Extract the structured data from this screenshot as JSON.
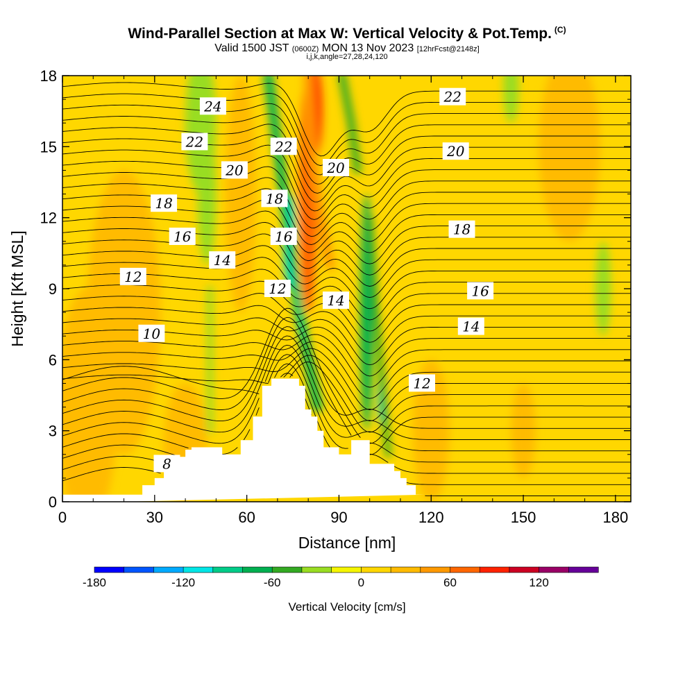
{
  "header": {
    "title_main": "Wind-Parallel Section at Max W: Vertical Velocity & Pot.Temp.",
    "title_tag": "(C)",
    "subtitle_valid": "Valid 1500 JST",
    "subtitle_utc": "(0600Z)",
    "subtitle_date": "MON 13 Nov 2023",
    "subtitle_fcst": "[12hrFcst@2148z]",
    "params": "i,j,k,angle=27,28,24,120"
  },
  "chart_data": {
    "type": "heatmap",
    "xlabel": "Distance [nm]",
    "ylabel": "Height [Kft MSL]",
    "xlim": [
      0,
      185
    ],
    "ylim": [
      0,
      18
    ],
    "x_ticks": [
      0,
      30,
      60,
      90,
      120,
      150,
      180
    ],
    "y_ticks": [
      0,
      3,
      6,
      9,
      12,
      15,
      18
    ],
    "colorbar": {
      "label": "Vertical Velocity [cm/s]",
      "min": -180,
      "max": 160,
      "step": 20,
      "tick_values": [
        -180,
        -120,
        -60,
        0,
        60,
        120
      ],
      "colors": [
        "#0000ff",
        "#0055ff",
        "#00aaff",
        "#00e6e6",
        "#00cc88",
        "#00b050",
        "#33aa22",
        "#99dd22",
        "#f5f500",
        "#ffd700",
        "#ffbb00",
        "#ff9900",
        "#ff6600",
        "#ff2200",
        "#cc0022",
        "#990066",
        "#660099"
      ]
    },
    "background_w": 5,
    "w_features": [
      {
        "value": 25,
        "cx": 20,
        "cy": 8,
        "rx": 12,
        "ry": 6
      },
      {
        "value": 20,
        "cx": 8,
        "cy": 4,
        "rx": 10,
        "ry": 5
      },
      {
        "value": 25,
        "cx": 40,
        "cy": 2.5,
        "rx": 7,
        "ry": 2.5
      },
      {
        "value": -30,
        "cx": 45,
        "cy": 16,
        "rx": 5,
        "ry": 3
      },
      {
        "value": -35,
        "cx": 47,
        "cy": 13,
        "rx": 3,
        "ry": 3
      },
      {
        "value": 30,
        "cx": 58,
        "cy": 13,
        "rx": 5,
        "ry": 5
      },
      {
        "value": 60,
        "cx": 80,
        "cy": 13,
        "rx": 3,
        "ry": 5
      },
      {
        "value": 85,
        "cx": 82,
        "cy": 16.5,
        "rx": 2.5,
        "ry": 2
      },
      {
        "value": -120,
        "cx": 74,
        "cy": 11,
        "rx": 2,
        "ry": 2
      },
      {
        "value": -70,
        "cx": 99,
        "cy": 8,
        "rx": 2,
        "ry": 5
      },
      {
        "value": -120,
        "cx": 104,
        "cy": 4.5,
        "rx": 1.2,
        "ry": 1.2
      },
      {
        "value": 25,
        "cx": 120,
        "cy": 3,
        "rx": 6,
        "ry": 3
      },
      {
        "value": 35,
        "cx": 150,
        "cy": 3,
        "rx": 4,
        "ry": 2
      },
      {
        "value": -35,
        "cx": 146,
        "cy": 17.5,
        "rx": 2.5,
        "ry": 1.5
      },
      {
        "value": -35,
        "cx": 176,
        "cy": 9,
        "rx": 2.5,
        "ry": 2
      },
      {
        "value": 20,
        "cx": 165,
        "cy": 15,
        "rx": 10,
        "ry": 4
      }
    ],
    "w_bands": [
      {
        "value": -65,
        "width": 3,
        "points": [
          [
            67,
            18
          ],
          [
            72,
            13
          ],
          [
            77,
            8
          ],
          [
            83,
            4
          ]
        ]
      },
      {
        "value": -90,
        "width": 1.5,
        "points": [
          [
            72,
            13
          ],
          [
            75,
            10
          ],
          [
            78,
            7
          ]
        ]
      },
      {
        "value": 55,
        "width": 3,
        "points": [
          [
            80,
            18
          ],
          [
            81,
            15
          ],
          [
            84,
            12
          ],
          [
            87,
            10
          ]
        ]
      },
      {
        "value": -60,
        "width": 2,
        "points": [
          [
            100,
            12
          ],
          [
            102,
            8
          ],
          [
            104,
            5
          ],
          [
            106,
            2
          ]
        ]
      },
      {
        "value": -45,
        "width": 2.5,
        "points": [
          [
            91,
            18
          ],
          [
            94,
            16
          ],
          [
            96,
            14
          ]
        ]
      },
      {
        "value": -40,
        "width": 2,
        "points": [
          [
            48,
            9
          ],
          [
            48,
            6
          ],
          [
            48,
            3
          ]
        ]
      }
    ],
    "terrain": {
      "x": [
        0,
        26,
        26,
        30,
        30,
        33,
        33,
        35,
        35,
        37,
        37,
        40,
        40,
        42,
        42,
        52,
        52,
        58,
        58,
        62,
        62,
        65,
        65,
        68,
        68,
        70,
        70,
        77,
        77,
        79,
        79,
        81,
        81,
        83,
        83,
        85,
        85,
        88,
        88,
        90,
        90,
        94,
        94,
        96,
        96,
        100,
        100,
        108,
        108,
        110,
        110,
        112,
        112,
        115,
        115,
        118,
        118,
        185
      ],
      "y": [
        0.3,
        0.3,
        0.7,
        0.7,
        1.0,
        1.0,
        1.3,
        1.3,
        1.6,
        1.6,
        1.9,
        1.9,
        2.2,
        2.2,
        2.3,
        2.3,
        2.0,
        2.0,
        2.6,
        2.6,
        3.6,
        3.6,
        4.9,
        4.9,
        5.2,
        5.2,
        5.2,
        5.2,
        4.9,
        4.9,
        3.9,
        3.9,
        3.6,
        3.6,
        3.0,
        3.0,
        2.3,
        2.3,
        2.3,
        2.3,
        2.0,
        2.0,
        2.6,
        2.6,
        2.6,
        2.6,
        1.6,
        1.6,
        1.3,
        1.3,
        1.0,
        1.0,
        0.7,
        0.7,
        0.3,
        0.3
      ]
    },
    "theta_contours": [
      {
        "level": 8,
        "label": true,
        "label_x": 34,
        "label_y": 1.6
      },
      {
        "level": 10,
        "label": true,
        "label_x": 29,
        "label_y": 7.1
      },
      {
        "level": 12,
        "label": true,
        "label_x": 23,
        "label_y": 9.5
      },
      {
        "level": 12,
        "label": true,
        "label_x": 70,
        "label_y": 9.0
      },
      {
        "level": 12,
        "label": true,
        "label_x": 117,
        "label_y": 5.0
      },
      {
        "level": 14,
        "label": true,
        "label_x": 52,
        "label_y": 10.2
      },
      {
        "level": 14,
        "label": true,
        "label_x": 89,
        "label_y": 8.5
      },
      {
        "level": 14,
        "label": true,
        "label_x": 133,
        "label_y": 7.4
      },
      {
        "level": 16,
        "label": true,
        "label_x": 39,
        "label_y": 11.2
      },
      {
        "level": 16,
        "label": true,
        "label_x": 72,
        "label_y": 11.2
      },
      {
        "level": 16,
        "label": true,
        "label_x": 136,
        "label_y": 8.9
      },
      {
        "level": 18,
        "label": true,
        "label_x": 33,
        "label_y": 12.6
      },
      {
        "level": 18,
        "label": true,
        "label_x": 69,
        "label_y": 12.8
      },
      {
        "level": 18,
        "label": true,
        "label_x": 130,
        "label_y": 11.5
      },
      {
        "level": 20,
        "label": true,
        "label_x": 56,
        "label_y": 14.0
      },
      {
        "level": 20,
        "label": true,
        "label_x": 89,
        "label_y": 14.1
      },
      {
        "level": 20,
        "label": true,
        "label_x": 128,
        "label_y": 14.8
      },
      {
        "level": 22,
        "label": true,
        "label_x": 43,
        "label_y": 15.2
      },
      {
        "level": 22,
        "label": true,
        "label_x": 72,
        "label_y": 15.0
      },
      {
        "level": 22,
        "label": true,
        "label_x": 127,
        "label_y": 17.1
      },
      {
        "level": 24,
        "label": true,
        "label_x": 49,
        "label_y": 16.7
      }
    ]
  }
}
